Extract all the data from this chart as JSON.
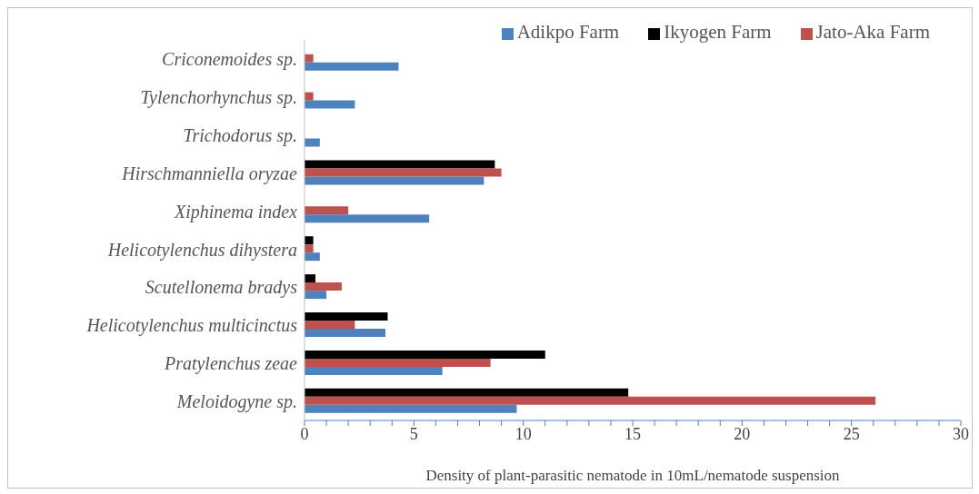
{
  "chart_data": {
    "type": "bar",
    "orientation": "horizontal",
    "xlabel": "Density of plant-parasitic nematode in 10mL/nematode suspension",
    "categories": [
      "Criconemoides sp.",
      "Tylenchorhynchus sp.",
      "Trichodorus sp.",
      "Hirschmanniella oryzae",
      "Xiphinema index",
      "Helicotylenchus dihystera",
      "Scutellonema bradys",
      "Helicotylenchus multicinctus",
      "Pratylenchus zeae",
      "Meloidogyne sp."
    ],
    "series": [
      {
        "name": "Ikyogen Farm",
        "color": "#000000",
        "values": [
          0,
          0,
          0,
          8.7,
          0,
          0.4,
          0.5,
          3.8,
          11.0,
          14.8
        ]
      },
      {
        "name": "Jato-Aka Farm",
        "color": "#c0504d",
        "values": [
          0.4,
          0.4,
          0,
          9.0,
          2.0,
          0.4,
          1.7,
          2.3,
          8.5,
          26.1
        ]
      },
      {
        "name": "Adikpo Farm",
        "color": "#4f81bd",
        "values": [
          4.3,
          2.3,
          0.7,
          8.2,
          5.7,
          0.7,
          1.0,
          3.7,
          6.3,
          9.7
        ]
      }
    ],
    "xlim": [
      0,
      30
    ],
    "xticks": [
      0,
      {
        "value": 1,
        "label": null
      },
      {
        "value": 2,
        "label": null
      },
      {
        "value": 3,
        "label": null
      },
      {
        "value": 4,
        "label": null
      },
      5,
      {
        "value": 6,
        "label": null
      },
      {
        "value": 7,
        "label": null
      },
      {
        "value": 8,
        "label": null
      },
      {
        "value": 9,
        "label": null
      },
      10,
      {
        "value": 11,
        "label": null
      },
      {
        "value": 12,
        "label": null
      },
      {
        "value": 13,
        "label": null
      },
      {
        "value": 14,
        "label": null
      },
      15,
      {
        "value": 16,
        "label": null
      },
      {
        "value": 17,
        "label": null
      },
      {
        "value": 18,
        "label": null
      },
      {
        "value": 19,
        "label": null
      },
      20,
      {
        "value": 21,
        "label": null
      },
      {
        "value": 22,
        "label": null
      },
      {
        "value": 23,
        "label": null
      },
      {
        "value": 24,
        "label": null
      },
      25,
      {
        "value": 26,
        "label": null
      },
      {
        "value": 27,
        "label": null
      },
      {
        "value": 28,
        "label": null
      },
      {
        "value": 29,
        "label": null
      },
      30
    ],
    "grid": false,
    "legend": "top right"
  }
}
